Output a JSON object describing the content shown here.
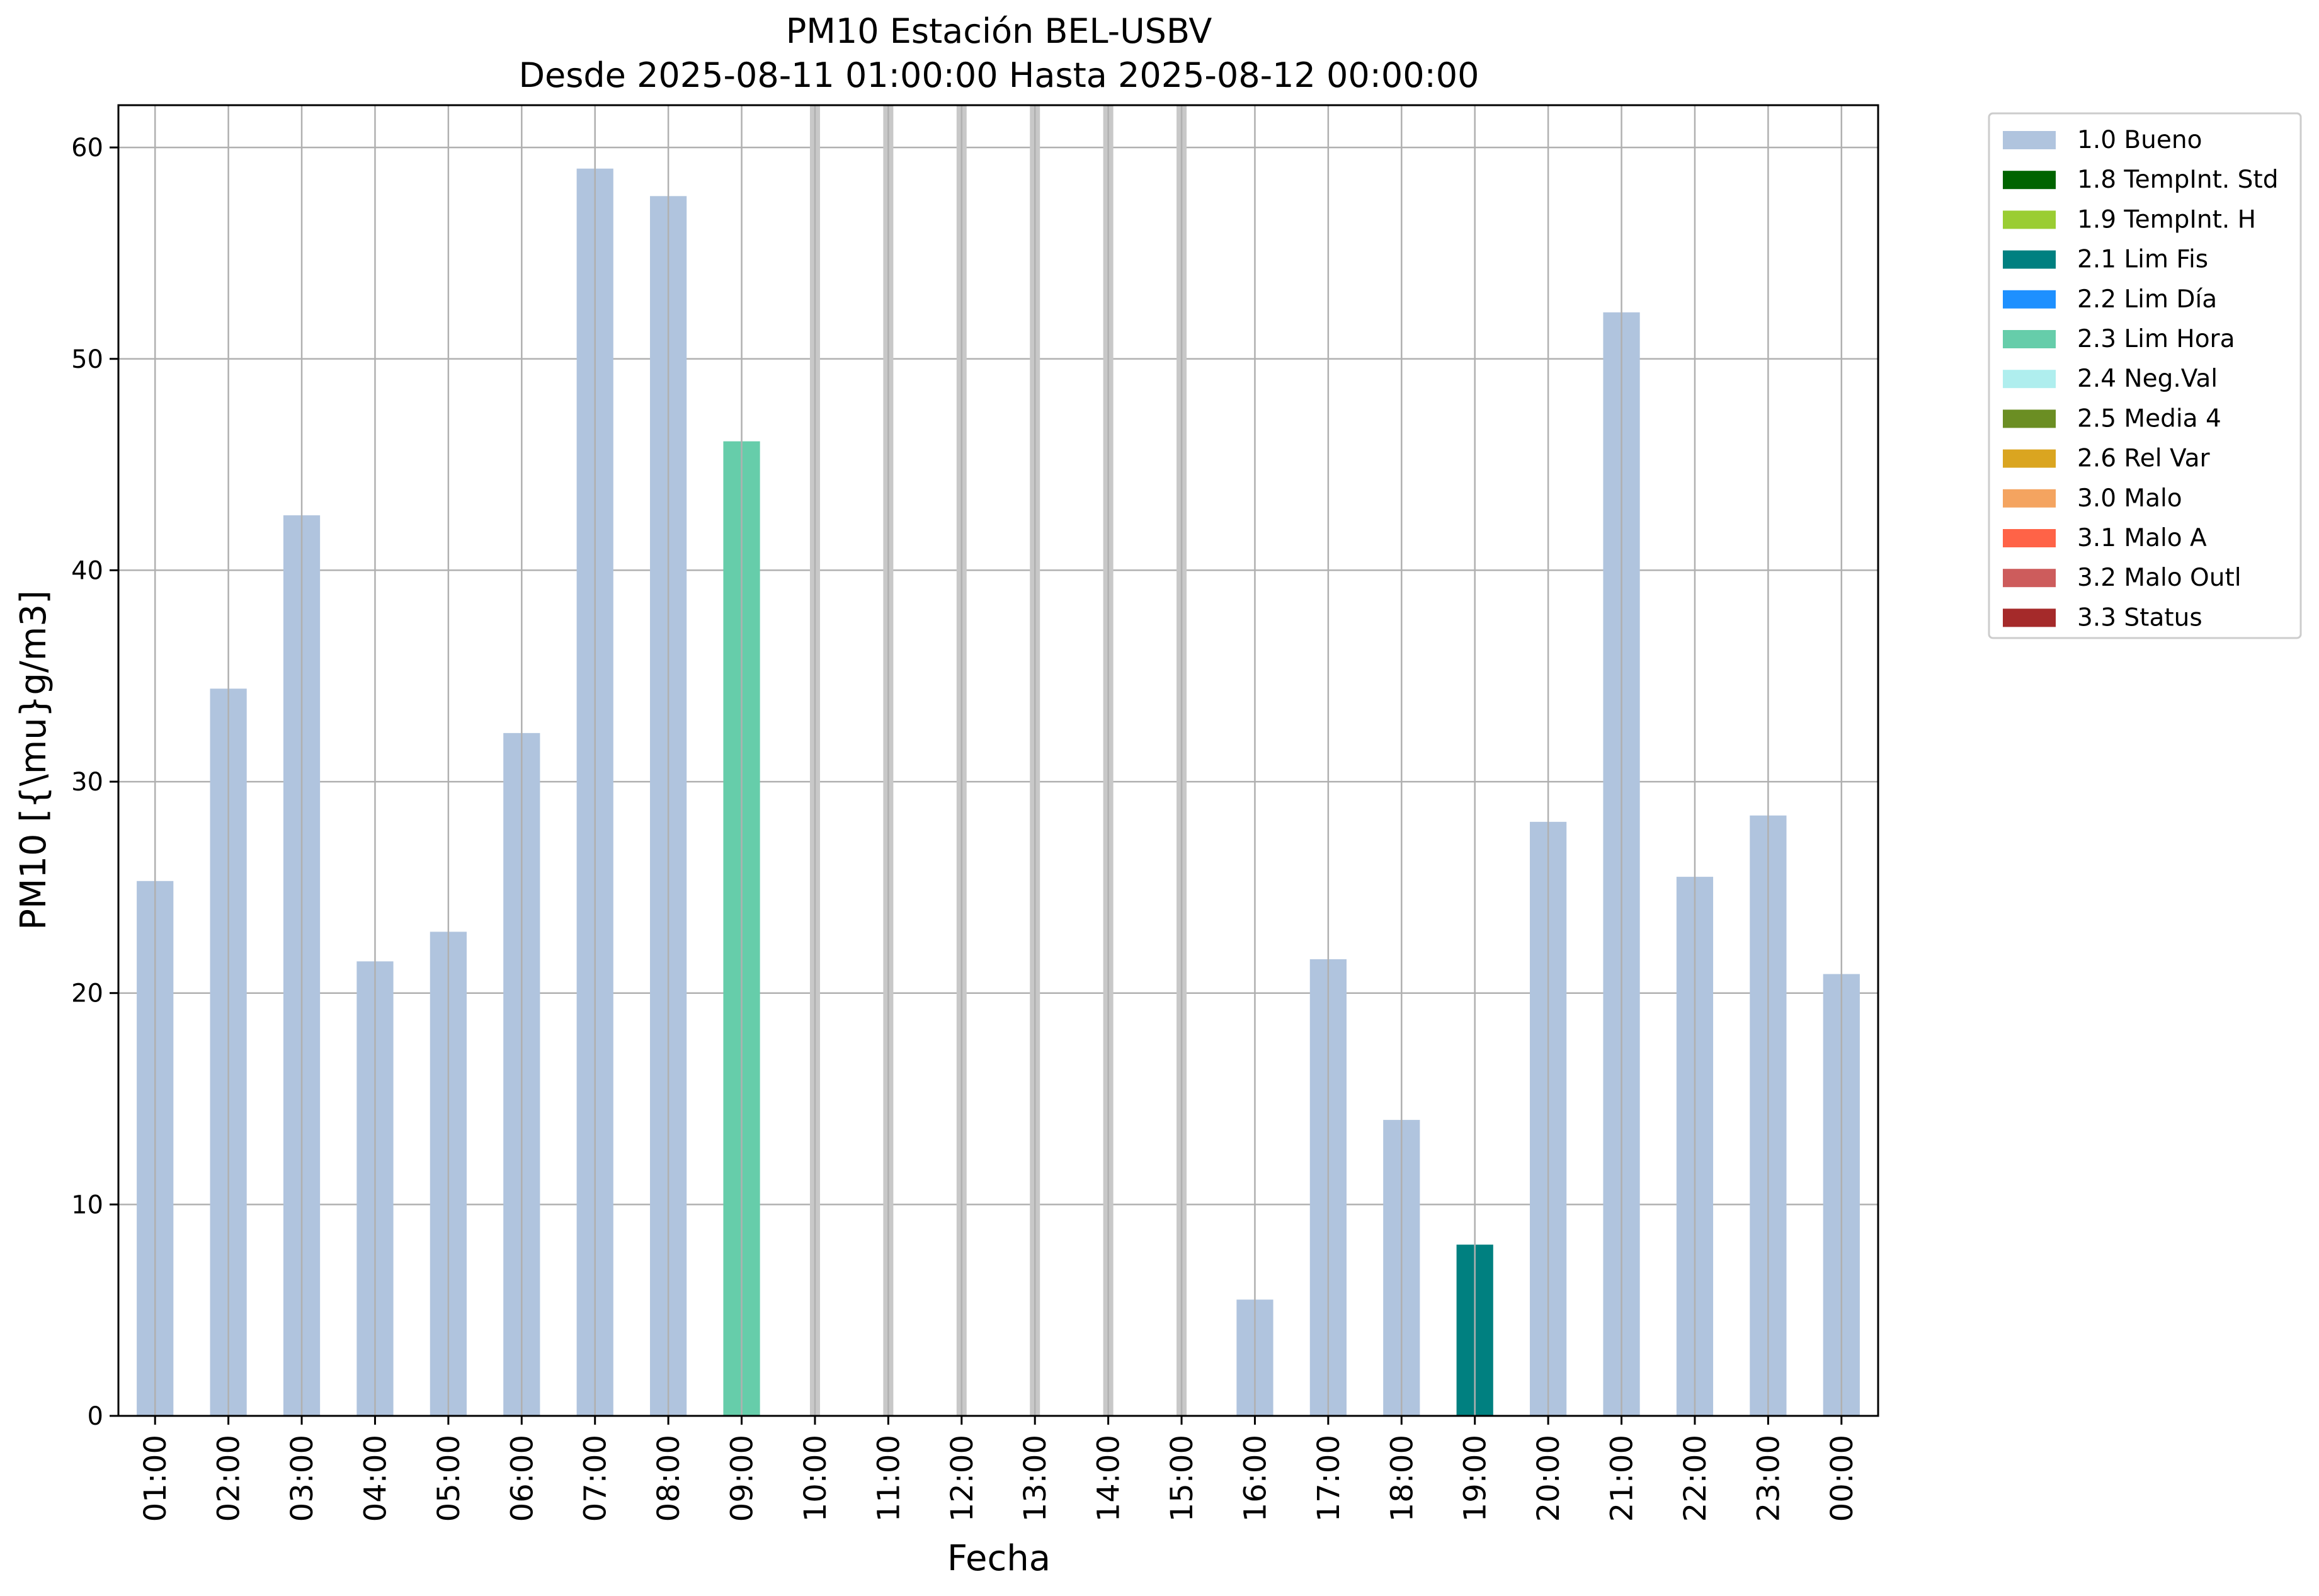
{
  "chart_data": {
    "type": "bar",
    "title": "PM10 Estación BEL-USBV",
    "subtitle": "Desde 2025-08-11 01:00:00 Hasta 2025-08-12 00:00:00",
    "xlabel": "Fecha",
    "ylabel": "PM10 [{\\mu}g/m3]",
    "ylim": [
      0,
      62
    ],
    "yticks": [
      0,
      10,
      20,
      30,
      40,
      50,
      60
    ],
    "grid": true,
    "legend_position": "outside-top-right",
    "categories": [
      "01:00",
      "02:00",
      "03:00",
      "04:00",
      "05:00",
      "06:00",
      "07:00",
      "08:00",
      "09:00",
      "10:00",
      "11:00",
      "12:00",
      "13:00",
      "14:00",
      "15:00",
      "16:00",
      "17:00",
      "18:00",
      "19:00",
      "20:00",
      "21:00",
      "22:00",
      "23:00",
      "00:00"
    ],
    "values": [
      25.3,
      34.4,
      42.6,
      21.5,
      22.9,
      32.3,
      59.0,
      57.7,
      46.1,
      null,
      null,
      null,
      null,
      null,
      null,
      5.5,
      21.6,
      14.0,
      8.1,
      28.1,
      52.2,
      25.5,
      28.4,
      20.9
    ],
    "flags": [
      "1.0 Bueno",
      "1.0 Bueno",
      "1.0 Bueno",
      "1.0 Bueno",
      "1.0 Bueno",
      "1.0 Bueno",
      "1.0 Bueno",
      "1.0 Bueno",
      "2.3 Lim Hora",
      null,
      null,
      null,
      null,
      null,
      null,
      "1.0 Bueno",
      "1.0 Bueno",
      "1.0 Bueno",
      "2.1 Lim Fis",
      "1.0 Bueno",
      "1.0 Bueno",
      "1.0 Bueno",
      "1.0 Bueno",
      "1.0 Bueno"
    ],
    "missing_marker_color": "#c8c8c8",
    "legend": [
      {
        "label": "1.0 Bueno",
        "color": "#b0c4de"
      },
      {
        "label": "1.8 TempInt. Std",
        "color": "#006400"
      },
      {
        "label": "1.9 TempInt. H",
        "color": "#9acd32"
      },
      {
        "label": "2.1 Lim Fis",
        "color": "#008080"
      },
      {
        "label": "2.2 Lim Día",
        "color": "#1e90ff"
      },
      {
        "label": "2.3 Lim Hora",
        "color": "#66cdaa"
      },
      {
        "label": "2.4 Neg.Val",
        "color": "#afeeee"
      },
      {
        "label": "2.5 Media 4",
        "color": "#6b8e23"
      },
      {
        "label": "2.6 Rel Var",
        "color": "#daa520"
      },
      {
        "label": "3.0 Malo",
        "color": "#f4a460"
      },
      {
        "label": "3.1 Malo A",
        "color": "#ff6347"
      },
      {
        "label": "3.2 Malo Outl",
        "color": "#cd5c5c"
      },
      {
        "label": "3.3 Status",
        "color": "#a52a2a"
      }
    ]
  }
}
